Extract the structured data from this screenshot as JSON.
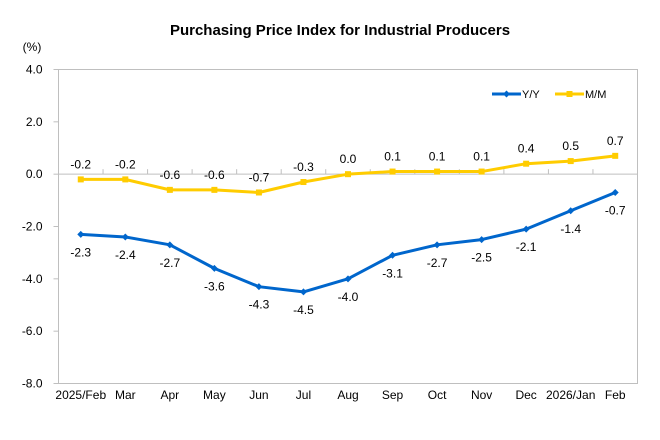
{
  "chart_data": {
    "type": "line",
    "title": "Purchasing Price Index for Industrial Producers",
    "ylabel": "(%)",
    "xlabel": "",
    "ylim": [
      -8.0,
      4.0
    ],
    "y_ticks": [
      "4.0",
      "2.0",
      "0.0",
      "-2.0",
      "-4.0",
      "-6.0",
      "-8.0"
    ],
    "y_tick_values": [
      4.0,
      2.0,
      0.0,
      -2.0,
      -4.0,
      -6.0,
      -8.0
    ],
    "grid": false,
    "legend_position": "top-right",
    "categories": [
      "2025/Feb",
      "Mar",
      "Apr",
      "May",
      "Jun",
      "Jul",
      "Aug",
      "Sep",
      "Oct",
      "Nov",
      "Dec",
      "2026/Jan",
      "Feb"
    ],
    "series": [
      {
        "name": "Y/Y",
        "color": "#0066CC",
        "marker": "diamond",
        "label_position": "below",
        "values": [
          -2.3,
          -2.4,
          -2.7,
          -3.6,
          -4.3,
          -4.5,
          -4.0,
          -3.1,
          -2.7,
          -2.5,
          -2.1,
          -1.4,
          -0.7
        ],
        "labels": [
          "-2.3",
          "-2.4",
          "-2.7",
          "-3.6",
          "-4.3",
          "-4.5",
          "-4.0",
          "-3.1",
          "-2.7",
          "-2.5",
          "-2.1",
          "-1.4",
          "-0.7"
        ]
      },
      {
        "name": "M/M",
        "color": "#FFCC00",
        "marker": "square",
        "label_position": "above",
        "values": [
          -0.2,
          -0.2,
          -0.6,
          -0.6,
          -0.7,
          -0.3,
          0.0,
          0.1,
          0.1,
          0.1,
          0.4,
          0.5,
          0.7
        ],
        "labels": [
          "-0.2",
          "-0.2",
          "-0.6",
          "-0.6",
          "-0.7",
          "-0.3",
          "0.0",
          "0.1",
          "0.1",
          "0.1",
          "0.4",
          "0.5",
          "0.7"
        ]
      }
    ]
  }
}
